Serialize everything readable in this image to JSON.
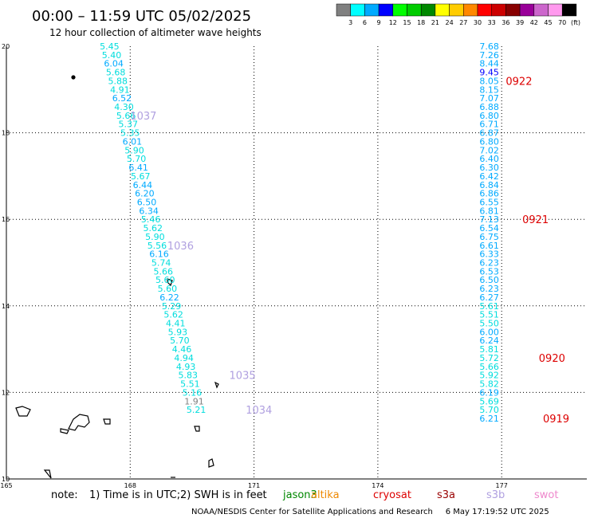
{
  "title": "00:00 – 11:59 UTC 05/02/2025",
  "subtitle": "12 hour collection of altimeter wave heights",
  "footer": "NOAA/NESDIS Center for Satellite Applications and Research     6 May 17:19:52 UTC 2025",
  "note": {
    "label": "note:",
    "items": [
      "1) Time is in UTC;",
      "2) SWH is in feet"
    ]
  },
  "satellites": [
    {
      "name": "jason3",
      "color": "#008800"
    },
    {
      "name": "altika",
      "color": "#ee8800"
    },
    {
      "name": "cryosat",
      "color": "#dd0000"
    },
    {
      "name": "s3a",
      "color": "#990000"
    },
    {
      "name": "s3b",
      "color": "#b0a0e0"
    },
    {
      "name": "swot",
      "color": "#ee88cc"
    }
  ],
  "colorbar": {
    "unit": "(ft)",
    "ticks": [
      "3",
      "6",
      "9",
      "12",
      "15",
      "18",
      "21",
      "24",
      "27",
      "30",
      "33",
      "36",
      "39",
      "42",
      "45",
      "70"
    ],
    "colors": [
      "#808080",
      "#00ffff",
      "#00aaff",
      "#0000ff",
      "#00ff00",
      "#00cc00",
      "#008800",
      "#ffff00",
      "#ffcc00",
      "#ff8800",
      "#ff0000",
      "#cc0000",
      "#880000",
      "#990099",
      "#cc66cc",
      "#ff99ee",
      "#000000"
    ]
  },
  "chart_data": {
    "type": "scatter",
    "title": "00:00 – 11:59 UTC 05/02/2025",
    "subtitle": "12 hour collection of altimeter wave heights",
    "xlim": [
      165,
      178.2
    ],
    "ylim": [
      10,
      20
    ],
    "xticks": [
      "165",
      "168",
      "171",
      "174",
      "177"
    ],
    "yticks": [
      "20",
      "18",
      "16",
      "14",
      "12",
      "10"
    ],
    "grid": true,
    "series": [
      {
        "color_key": "track-west",
        "points": [
          [
            167.5,
            20.0,
            "5.45"
          ],
          [
            167.55,
            19.8,
            "5.40"
          ],
          [
            167.6,
            19.6,
            "6.04"
          ],
          [
            167.65,
            19.4,
            "5.68"
          ],
          [
            167.7,
            19.2,
            "5.88"
          ],
          [
            167.75,
            19.0,
            "4.91"
          ],
          [
            167.8,
            18.8,
            "6.52"
          ],
          [
            167.85,
            18.6,
            "4.30"
          ],
          [
            167.9,
            18.4,
            "5.66"
          ],
          [
            167.95,
            18.2,
            "5.37"
          ],
          [
            168.0,
            18.0,
            "5.35"
          ],
          [
            168.05,
            17.8,
            "6.01"
          ],
          [
            168.1,
            17.6,
            "5.90"
          ],
          [
            168.15,
            17.4,
            "5.70"
          ],
          [
            168.2,
            17.2,
            "6.41"
          ],
          [
            168.25,
            17.0,
            "5.67"
          ],
          [
            168.3,
            16.8,
            "6.44"
          ],
          [
            168.35,
            16.6,
            "6.20"
          ],
          [
            168.4,
            16.4,
            "6.50"
          ],
          [
            168.45,
            16.2,
            "6.34"
          ],
          [
            168.5,
            16.0,
            "5.46"
          ],
          [
            168.55,
            15.8,
            "5.62"
          ],
          [
            168.6,
            15.6,
            "5.90"
          ],
          [
            168.65,
            15.4,
            "5.56"
          ],
          [
            168.7,
            15.2,
            "6.16"
          ],
          [
            168.75,
            15.0,
            "5.74"
          ],
          [
            168.8,
            14.8,
            "5.66"
          ],
          [
            168.85,
            14.6,
            "5.60"
          ],
          [
            168.9,
            14.4,
            "5.60"
          ],
          [
            168.95,
            14.2,
            "6.22"
          ],
          [
            169.0,
            14.0,
            "5.29"
          ],
          [
            169.05,
            13.8,
            "5.62"
          ],
          [
            169.1,
            13.6,
            "4.41"
          ],
          [
            169.15,
            13.4,
            "5.93"
          ],
          [
            169.2,
            13.2,
            "5.70"
          ],
          [
            169.25,
            13.0,
            "4.46"
          ],
          [
            169.3,
            12.8,
            "4.94"
          ],
          [
            169.35,
            12.6,
            "4.93"
          ],
          [
            169.4,
            12.4,
            "5.83"
          ],
          [
            169.45,
            12.2,
            "5.51"
          ],
          [
            169.5,
            12.0,
            "5.16"
          ],
          [
            169.55,
            11.8,
            "1.91"
          ],
          [
            169.6,
            11.6,
            "5.21"
          ]
        ]
      },
      {
        "color_key": "track-east",
        "points": [
          [
            176.7,
            20.0,
            "7.68"
          ],
          [
            176.7,
            19.8,
            "7.26"
          ],
          [
            176.7,
            19.6,
            "8.44"
          ],
          [
            176.7,
            19.4,
            "9.45"
          ],
          [
            176.7,
            19.2,
            "8.05"
          ],
          [
            176.7,
            19.0,
            "8.15"
          ],
          [
            176.7,
            18.8,
            "7.07"
          ],
          [
            176.7,
            18.6,
            "6.88"
          ],
          [
            176.7,
            18.4,
            "6.80"
          ],
          [
            176.7,
            18.2,
            "6.71"
          ],
          [
            176.7,
            18.0,
            "6.87"
          ],
          [
            176.7,
            17.8,
            "6.80"
          ],
          [
            176.7,
            17.6,
            "7.02"
          ],
          [
            176.7,
            17.4,
            "6.40"
          ],
          [
            176.7,
            17.2,
            "6.30"
          ],
          [
            176.7,
            17.0,
            "6.42"
          ],
          [
            176.7,
            16.8,
            "6.84"
          ],
          [
            176.7,
            16.6,
            "6.86"
          ],
          [
            176.7,
            16.4,
            "6.55"
          ],
          [
            176.7,
            16.2,
            "6.81"
          ],
          [
            176.7,
            16.0,
            "7.13"
          ],
          [
            176.7,
            15.8,
            "6.54"
          ],
          [
            176.7,
            15.6,
            "6.75"
          ],
          [
            176.7,
            15.4,
            "6.61"
          ],
          [
            176.7,
            15.2,
            "6.33"
          ],
          [
            176.7,
            15.0,
            "6.23"
          ],
          [
            176.7,
            14.8,
            "6.53"
          ],
          [
            176.7,
            14.6,
            "6.50"
          ],
          [
            176.7,
            14.4,
            "6.23"
          ],
          [
            176.7,
            14.2,
            "6.27"
          ],
          [
            176.7,
            14.0,
            "5.61"
          ],
          [
            176.7,
            13.8,
            "5.51"
          ],
          [
            176.7,
            13.6,
            "5.50"
          ],
          [
            176.7,
            13.4,
            "6.00"
          ],
          [
            176.7,
            13.2,
            "6.24"
          ],
          [
            176.7,
            13.0,
            "5.81"
          ],
          [
            176.7,
            12.8,
            "5.72"
          ],
          [
            176.7,
            12.6,
            "5.66"
          ],
          [
            176.7,
            12.4,
            "5.92"
          ],
          [
            176.7,
            12.2,
            "5.82"
          ],
          [
            176.7,
            12.0,
            "6.19"
          ],
          [
            176.7,
            11.8,
            "5.69"
          ],
          [
            176.7,
            11.6,
            "5.70"
          ],
          [
            176.7,
            11.4,
            "6.21"
          ]
        ]
      }
    ],
    "annotations": [
      {
        "text": "1037",
        "x": 168.0,
        "y": 18.4,
        "color": "#b0a0e0"
      },
      {
        "text": "1036",
        "x": 168.9,
        "y": 15.4,
        "color": "#b0a0e0"
      },
      {
        "text": "1035",
        "x": 170.4,
        "y": 12.4,
        "color": "#b0a0e0"
      },
      {
        "text": "1034",
        "x": 170.8,
        "y": 11.6,
        "color": "#b0a0e0"
      },
      {
        "text": "0922",
        "x": 177.1,
        "y": 19.2,
        "color": "#dd0000"
      },
      {
        "text": "0921",
        "x": 177.5,
        "y": 16.0,
        "color": "#dd0000"
      },
      {
        "text": "0920",
        "x": 177.9,
        "y": 12.8,
        "color": "#dd0000"
      },
      {
        "text": "0919",
        "x": 178.0,
        "y": 11.4,
        "color": "#dd0000"
      }
    ]
  }
}
